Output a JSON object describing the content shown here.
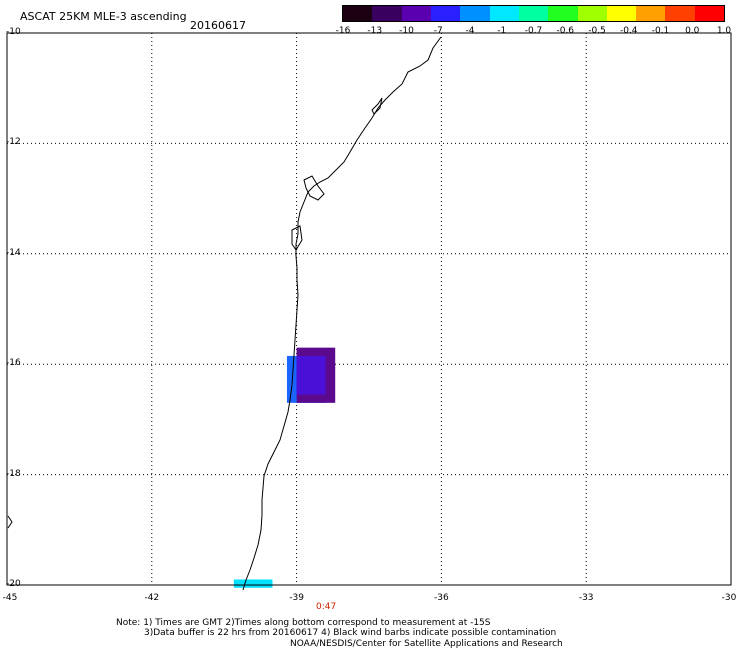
{
  "header": {
    "title": "ASCAT 25KM MLE-3 ascending",
    "date": "20160617"
  },
  "colorbar": {
    "labels": [
      "-16",
      "-13",
      "-10",
      "-7",
      "-4",
      "-1",
      "-0.7",
      "-0.6",
      "-0.5",
      "-0.4",
      "-0.1",
      "0.0",
      "1.0"
    ],
    "colors": [
      "#1a0010",
      "#3a0060",
      "#5a00b0",
      "#2a20ff",
      "#0090ff",
      "#00e8ff",
      "#00ffa0",
      "#20ff20",
      "#a0ff00",
      "#ffff00",
      "#ffa000",
      "#ff4000",
      "#ff0000"
    ]
  },
  "axes": {
    "y_labels": [
      "-10",
      "-12",
      "-14",
      "-16",
      "-18",
      "-20"
    ],
    "x_labels": [
      "-45",
      "-42",
      "-39",
      "-36",
      "-33",
      "-30"
    ],
    "lat_range": [
      -20,
      -10
    ],
    "lon_range": [
      -45,
      -30
    ],
    "grid": "dotted"
  },
  "time_label": "0:47",
  "data_cells": [
    {
      "lon": [
        -39.2,
        -38.4
      ],
      "lat": [
        -16.7,
        -15.85
      ],
      "color": "#1a66ff"
    },
    {
      "lon": [
        -39.0,
        -38.2
      ],
      "lat": [
        -16.7,
        -15.7
      ],
      "color": "#5b0a8e"
    },
    {
      "lon": [
        -39.0,
        -38.4
      ],
      "lat": [
        -16.55,
        -15.85
      ],
      "color": "#4a10d8"
    },
    {
      "lon": [
        -40.3,
        -39.5
      ],
      "lat": [
        -20.05,
        -19.9
      ],
      "color": "#00e0ff"
    }
  ],
  "notes": {
    "line1": "Note: 1) Times are GMT 2)Times along bottom correspond to measurement at -15S",
    "line2": "3)Data buffer is 22 hrs from 20160617 4) Black wind barbs indicate possible contamination",
    "line3": "NOAA/NESDIS/Center for Satellite Applications and Research"
  }
}
